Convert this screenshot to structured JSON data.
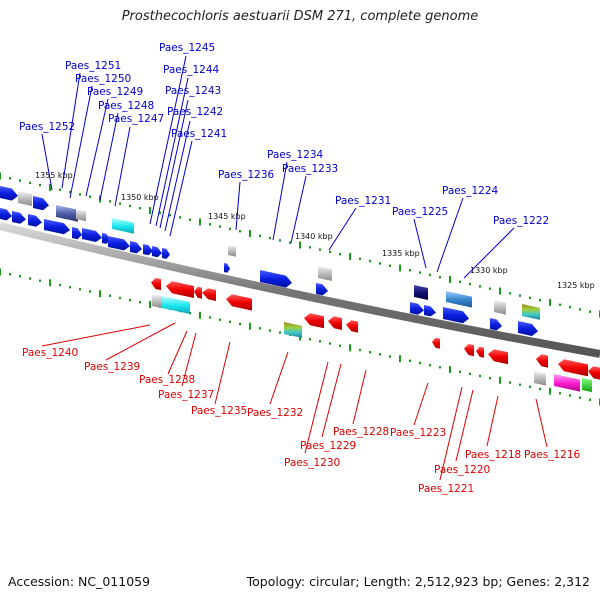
{
  "title": "Prosthecochloris aestuarii DSM 271, complete genome",
  "footer": {
    "accession": "Accession: NC_011059",
    "topology": "Topology: circular; Length: 2,512,923 bp; Genes: 2,312"
  },
  "colors": {
    "forward_label": "#0000cc",
    "reverse_label": "#dd0000",
    "backbone": "#888888",
    "tick": "#1a9c1a"
  },
  "ruler": [
    "1355 kbp",
    "1350 kbp",
    "1345 kbp",
    "1340 kbp",
    "1335 kbp",
    "1330 kbp",
    "1325 kbp"
  ],
  "forward_genes": [
    "Paes_1245",
    "Paes_1251",
    "Paes_1244",
    "Paes_1250",
    "Paes_1243",
    "Paes_1249",
    "Paes_1248",
    "Paes_1242",
    "Paes_1247",
    "Paes_1252",
    "Paes_1241",
    "Paes_1234",
    "Paes_1233",
    "Paes_1236",
    "Paes_1231",
    "Paes_1224",
    "Paes_1225",
    "Paes_1222"
  ],
  "reverse_genes": [
    "Paes_1240",
    "Paes_1239",
    "Paes_1238",
    "Paes_1237",
    "Paes_1235",
    "Paes_1232",
    "Paes_1228",
    "Paes_1229",
    "Paes_1230",
    "Paes_1223",
    "Paes_1218",
    "Paes_1216",
    "Paes_1220",
    "Paes_1221"
  ]
}
